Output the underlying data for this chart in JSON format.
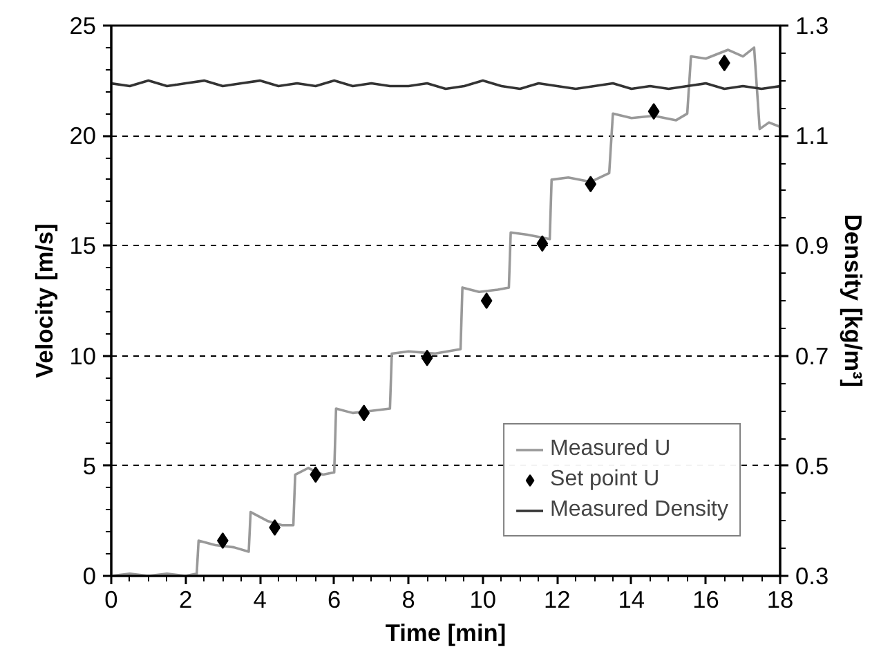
{
  "chart_data": {
    "type": "line",
    "xlabel": "Time [min]",
    "ylabel": "Velocity [m/s]",
    "y2label": "Density [kg/m³]",
    "xlim": [
      0,
      18
    ],
    "xticks": [
      0,
      2,
      4,
      6,
      8,
      10,
      12,
      14,
      16,
      18
    ],
    "ylim": [
      0,
      25
    ],
    "yticks": [
      0,
      5,
      10,
      15,
      20,
      25
    ],
    "y2lim": [
      0.3,
      1.3
    ],
    "y2ticks": [
      0.3,
      0.5,
      0.7,
      0.9,
      1.1,
      1.3
    ],
    "grid": "y",
    "legend": "bottom right",
    "series": [
      {
        "name": "Measured U",
        "color": "#999999",
        "x": [
          0,
          0.5,
          1,
          1.5,
          2,
          2.3,
          2.35,
          2.8,
          3.3,
          3.7,
          3.75,
          4.2,
          4.6,
          4.9,
          4.95,
          5.3,
          5.7,
          6.0,
          6.05,
          6.5,
          7.0,
          7.5,
          7.55,
          8.0,
          8.7,
          9.4,
          9.45,
          9.9,
          10.4,
          10.7,
          10.75,
          11.2,
          11.8,
          11.85,
          12.3,
          12.9,
          13.4,
          13.5,
          14.0,
          14.6,
          15.2,
          15.5,
          15.6,
          16.0,
          16.6,
          17.0,
          17.3,
          17.45,
          17.7,
          18
        ],
        "values": [
          0,
          0.1,
          0,
          0.1,
          0,
          0.1,
          1.6,
          1.4,
          1.3,
          1.1,
          2.9,
          2.5,
          2.3,
          2.3,
          4.6,
          4.9,
          4.6,
          4.7,
          7.6,
          7.4,
          7.5,
          7.6,
          10.1,
          10.2,
          10.1,
          10.3,
          13.1,
          12.9,
          13.0,
          13.1,
          15.6,
          15.5,
          15.3,
          18.0,
          18.1,
          17.9,
          18.3,
          21.0,
          20.8,
          20.9,
          20.7,
          21.0,
          23.6,
          23.5,
          23.9,
          23.6,
          24.0,
          20.3,
          20.6,
          20.4
        ]
      },
      {
        "name": "Set point U",
        "type": "scatter",
        "marker": "diamond",
        "color": "#000000",
        "x": [
          3.0,
          4.4,
          5.5,
          6.8,
          8.5,
          10.1,
          11.6,
          12.9,
          14.6,
          16.5
        ],
        "values": [
          1.6,
          2.2,
          4.6,
          7.4,
          9.9,
          12.5,
          15.1,
          17.8,
          21.1,
          23.3
        ]
      },
      {
        "name": "Measured Density",
        "axis": "y2",
        "color": "#333333",
        "x": [
          0,
          0.5,
          1,
          1.5,
          2,
          2.5,
          3,
          3.5,
          4,
          4.5,
          5,
          5.5,
          6,
          6.5,
          7,
          7.5,
          8,
          8.5,
          9,
          9.5,
          10,
          10.5,
          11,
          11.5,
          12,
          12.5,
          13,
          13.5,
          14,
          14.5,
          15,
          15.5,
          16,
          16.5,
          17,
          17.5,
          18
        ],
        "values": [
          1.195,
          1.19,
          1.2,
          1.19,
          1.195,
          1.2,
          1.19,
          1.195,
          1.2,
          1.19,
          1.195,
          1.19,
          1.2,
          1.19,
          1.195,
          1.19,
          1.19,
          1.195,
          1.185,
          1.19,
          1.2,
          1.19,
          1.185,
          1.195,
          1.19,
          1.185,
          1.19,
          1.195,
          1.185,
          1.19,
          1.185,
          1.19,
          1.195,
          1.185,
          1.19,
          1.185,
          1.19
        ]
      }
    ]
  }
}
